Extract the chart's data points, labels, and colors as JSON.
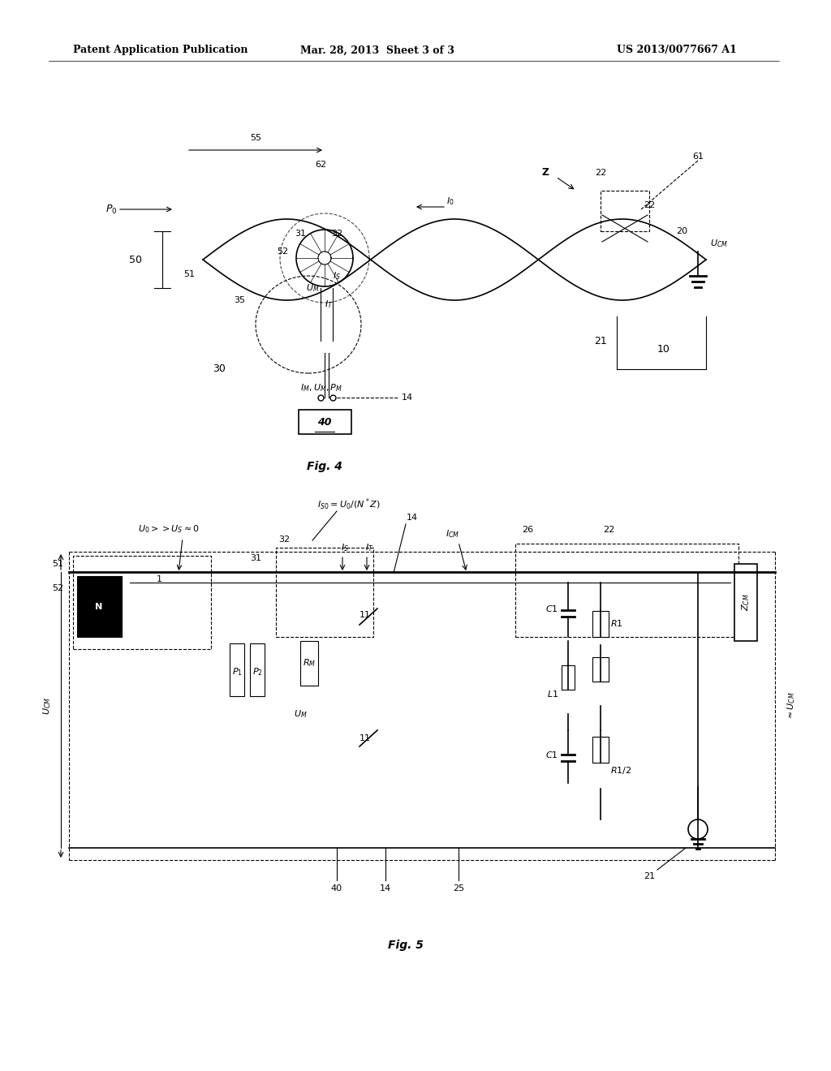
{
  "bg_color": "#ffffff",
  "header_left": "Patent Application Publication",
  "header_mid": "Mar. 28, 2013  Sheet 3 of 3",
  "header_right": "US 2013/0077667 A1",
  "fig4_label": "Fig. 4",
  "fig5_label": "Fig. 5"
}
